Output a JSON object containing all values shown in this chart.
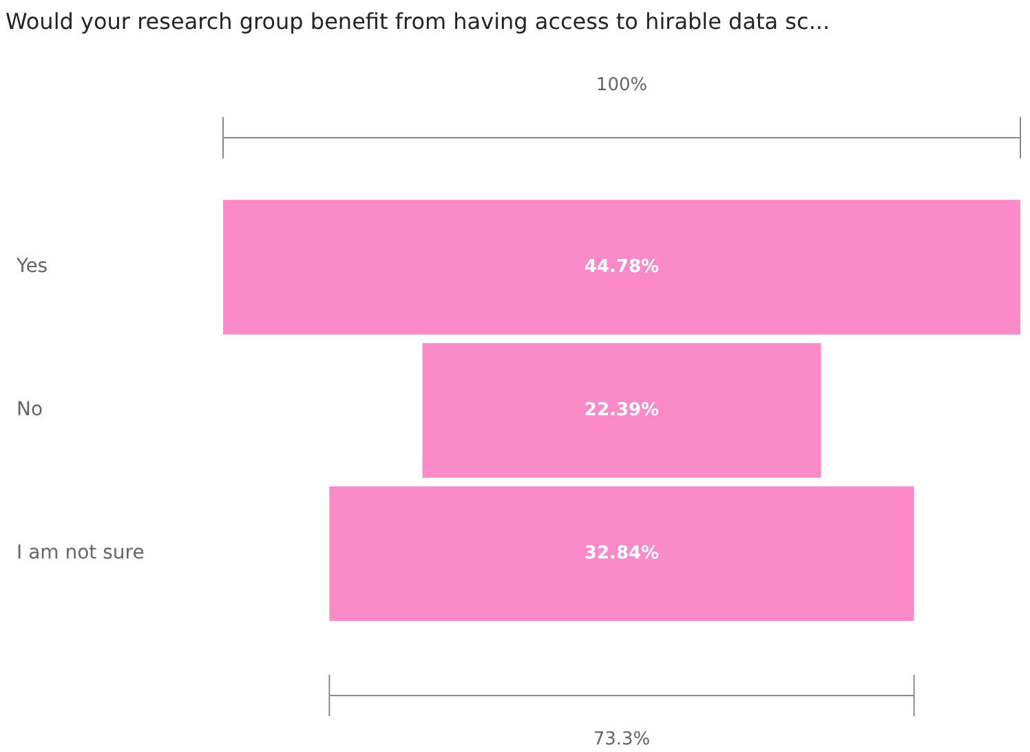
{
  "chart_data": {
    "type": "other",
    "title": "Would your research group benefit from having access to hirable data sc...",
    "categories": [
      "Yes",
      "No",
      "I am not sure"
    ],
    "values": [
      44.78,
      22.39,
      32.84
    ],
    "value_labels": [
      "44.78%",
      "22.39%",
      "32.84%"
    ],
    "color": "#fb8ac8",
    "annotations": [
      "100%",
      "73.3%"
    ]
  }
}
